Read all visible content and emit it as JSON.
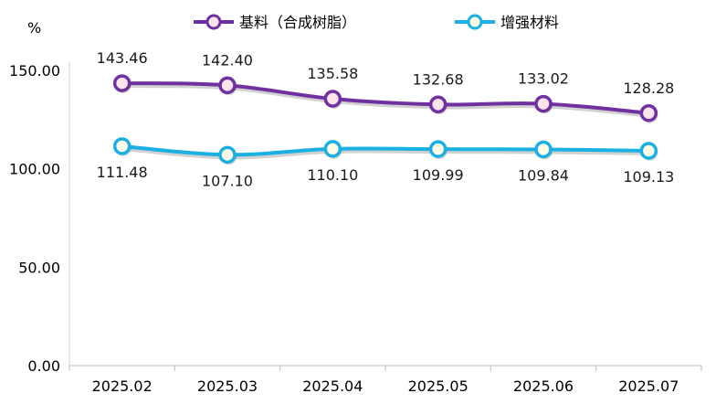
{
  "chart_data": {
    "type": "line",
    "unit": "%",
    "categories": [
      "2025.02",
      "2025.03",
      "2025.04",
      "2025.05",
      "2025.06",
      "2025.07"
    ],
    "y_ticks": [
      "0.00",
      "50.00",
      "100.00",
      "150.00"
    ],
    "ylim": [
      0,
      150
    ],
    "grid": false,
    "legend_position": "top",
    "series": [
      {
        "name": "基料（合成树脂）",
        "color": "#7030A0",
        "marker_fill": "#FCE4EC",
        "values": [
          143.46,
          142.4,
          135.58,
          132.68,
          133.02,
          128.28
        ],
        "labels": [
          "143.46",
          "142.40",
          "135.58",
          "132.68",
          "133.02",
          "128.28"
        ],
        "label_position": "above"
      },
      {
        "name": "增强材料",
        "color": "#1BB0E3",
        "marker_fill": "#FFFDE7",
        "values": [
          111.48,
          107.1,
          110.1,
          109.99,
          109.84,
          109.13
        ],
        "labels": [
          "111.48",
          "107.10",
          "110.10",
          "109.99",
          "109.84",
          "109.13"
        ],
        "label_position": "below"
      }
    ]
  }
}
